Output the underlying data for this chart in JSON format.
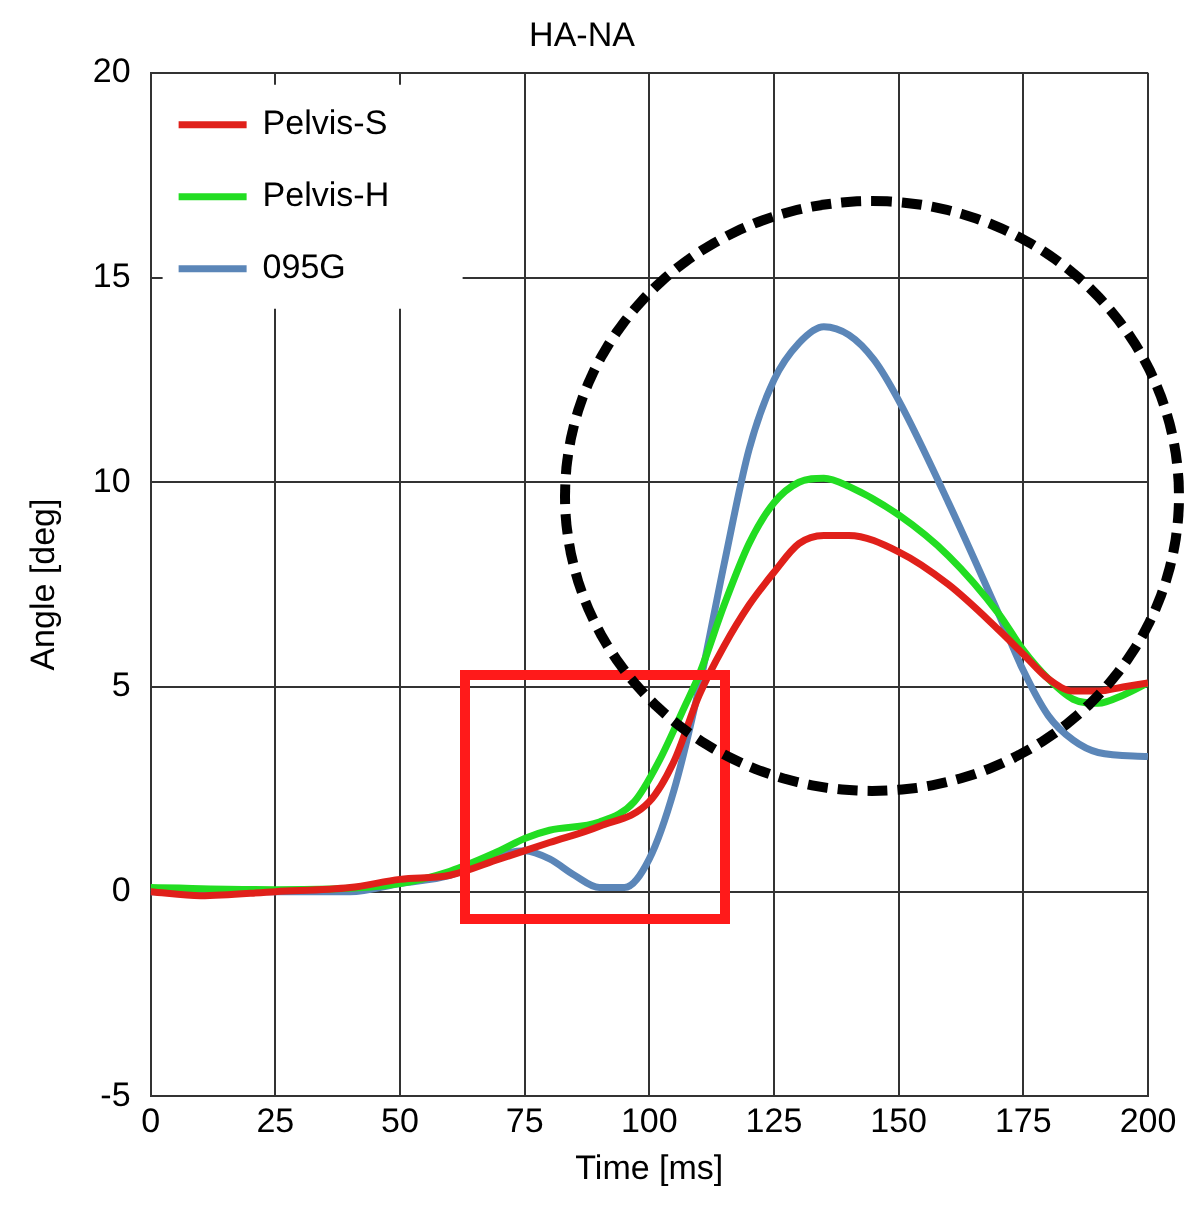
{
  "chart_data": {
    "type": "line",
    "title": "HA-NA",
    "xlabel": "Time [ms]",
    "ylabel": "Angle [deg]",
    "xlim": [
      0,
      200
    ],
    "xticks": [
      0,
      25,
      50,
      75,
      100,
      125,
      150,
      175,
      200
    ],
    "ylim": [
      -5,
      20
    ],
    "yticks": [
      -5,
      0,
      5,
      10,
      15,
      20
    ],
    "grid": true,
    "legend": "top left",
    "marker": "none",
    "line_style": "solid",
    "series": [
      {
        "name": "Pelvis-S",
        "color": "#e0201a",
        "x": [
          0,
          10,
          25,
          40,
          50,
          60,
          70,
          80,
          90,
          100,
          105,
          110,
          115,
          120,
          125,
          130,
          135,
          140,
          150,
          160,
          170,
          175,
          180,
          185,
          190,
          195,
          200
        ],
        "values": [
          0,
          -0.1,
          0,
          0.1,
          0.3,
          0.4,
          0.8,
          1.2,
          1.6,
          2.2,
          3.2,
          4.8,
          6,
          7,
          7.8,
          8.5,
          8.7,
          8.7,
          8.3,
          7.5,
          6.4,
          5.8,
          5.2,
          4.9,
          4.9,
          5,
          5.1
        ]
      },
      {
        "name": "Pelvis-H",
        "color": "#22dd22",
        "x": [
          0,
          25,
          50,
          60,
          70,
          75,
          80,
          90,
          97,
          102,
          107,
          110,
          115,
          120,
          125,
          130,
          135,
          140,
          150,
          160,
          170,
          175,
          180,
          185,
          190,
          195,
          200
        ],
        "values": [
          0.1,
          0.05,
          0.2,
          0.5,
          1,
          1.3,
          1.5,
          1.7,
          2.2,
          3.2,
          4.5,
          5.3,
          7,
          8.5,
          9.5,
          10,
          10.1,
          9.9,
          9.2,
          8.2,
          6.8,
          5.9,
          5.2,
          4.7,
          4.6,
          4.8,
          5.1
        ]
      },
      {
        "name": "095G",
        "color": "#5b86b8",
        "x": [
          0,
          25,
          40,
          50,
          60,
          70,
          75,
          80,
          85,
          90,
          95,
          100,
          105,
          110,
          115,
          120,
          125,
          130,
          135,
          140,
          145,
          150,
          160,
          170,
          175,
          180,
          185,
          190,
          200
        ],
        "values": [
          0,
          0,
          0,
          0.2,
          0.4,
          0.9,
          1,
          0.8,
          0.4,
          0.1,
          0.1,
          0.8,
          2.5,
          5,
          8,
          10.8,
          12.5,
          13.4,
          13.8,
          13.6,
          13,
          12,
          9.5,
          6.8,
          5.4,
          4.3,
          3.7,
          3.4,
          3.3
        ]
      }
    ]
  }
}
